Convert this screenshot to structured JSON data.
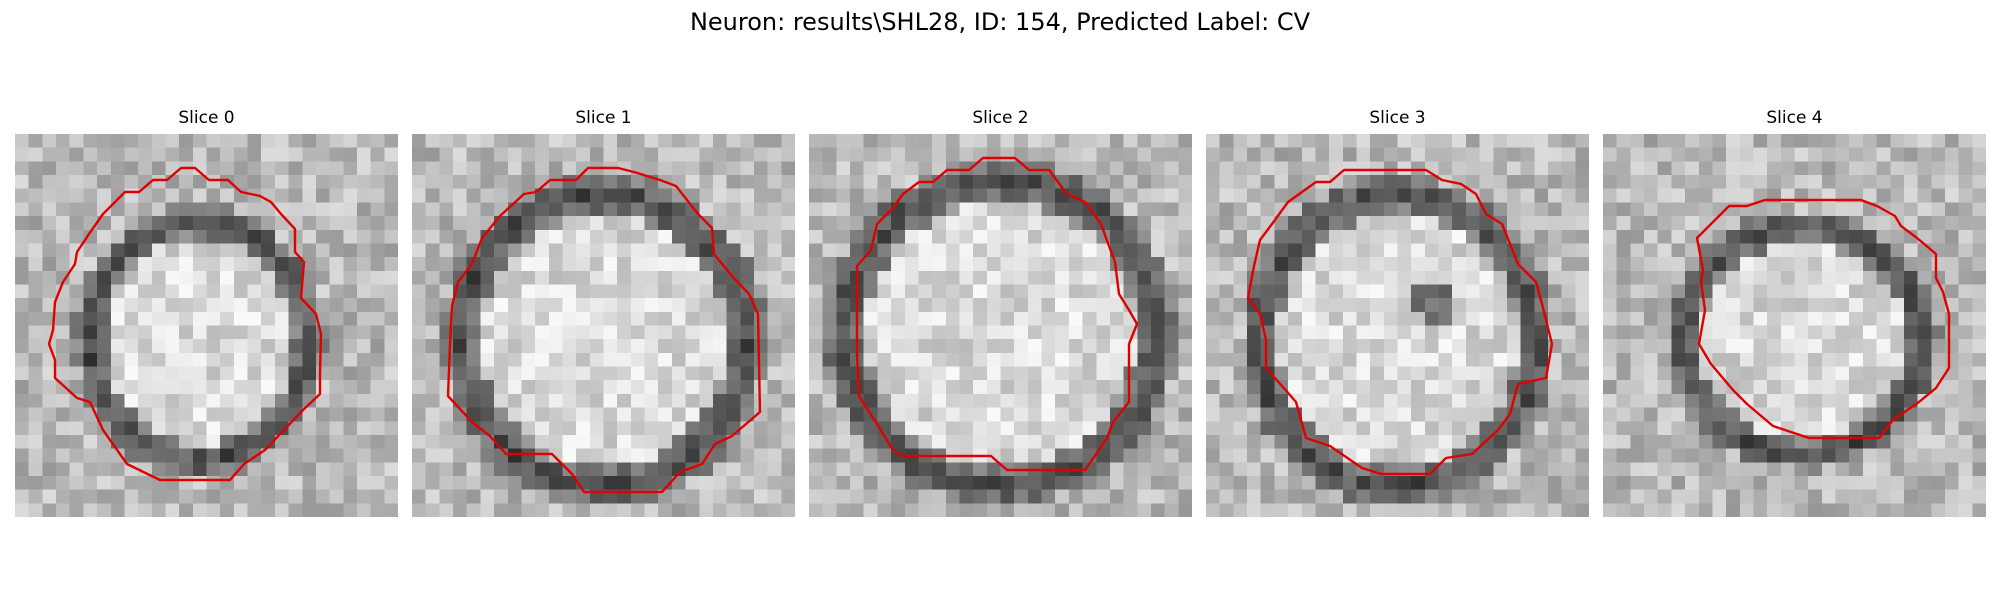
{
  "figure": {
    "title": "Neuron: results\\SHL28, ID: 154, Predicted Label: CV",
    "contour_color": "#e00000",
    "colormap": "gray"
  },
  "panels": [
    {
      "label": "Slice 0"
    },
    {
      "label": "Slice 1"
    },
    {
      "label": "Slice 2"
    },
    {
      "label": "Slice 3"
    },
    {
      "label": "Slice 4"
    }
  ]
}
